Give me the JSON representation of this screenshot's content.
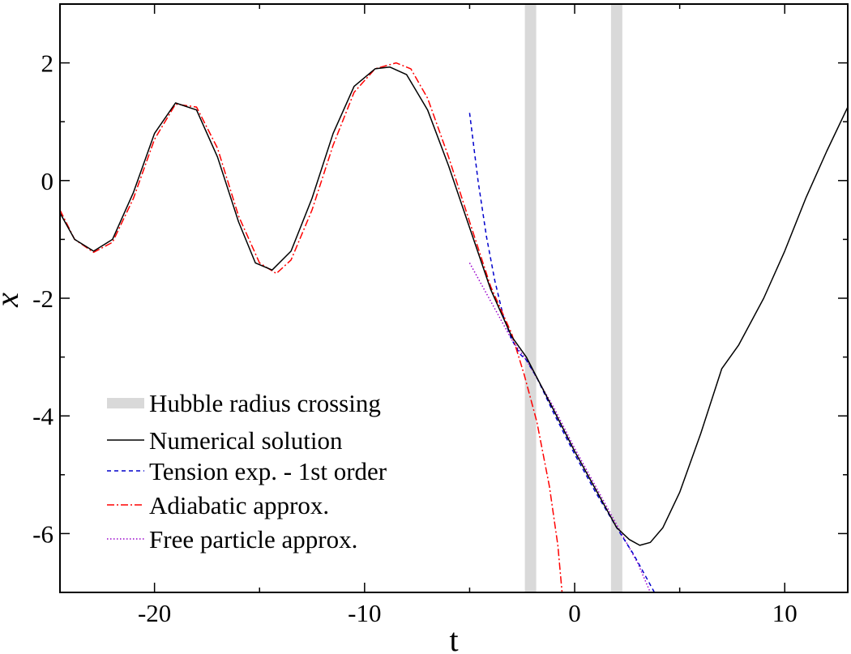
{
  "chart_data": {
    "type": "line",
    "xlabel": "t",
    "ylabel": "x",
    "xlim": [
      -24.5,
      13
    ],
    "ylim": [
      -7,
      3
    ],
    "xticks": [
      -20,
      -10,
      0,
      10
    ],
    "xtick_labels": [
      "-20",
      "-10",
      "0",
      "10"
    ],
    "yticks": [
      -6,
      -4,
      -2,
      0,
      2
    ],
    "ytick_labels": [
      "-6",
      "-4",
      "-2",
      "0",
      "2"
    ],
    "grid": false,
    "legend_position": "bottom-left",
    "hubble_crossings": [
      -2.1,
      2.0
    ],
    "legend": [
      "Hubble radius crossing",
      "Numerical solution",
      "Tension exp. - 1st order",
      "Adiabatic approx.",
      "Free particle approx."
    ],
    "series": [
      {
        "name": "Numerical solution",
        "color": "#000000",
        "style": "solid",
        "x": [
          -24.5,
          -23.8,
          -22.9,
          -22.0,
          -21.0,
          -20.0,
          -19.0,
          -18.0,
          -17.0,
          -16.0,
          -15.2,
          -14.4,
          -13.5,
          -12.5,
          -11.5,
          -10.5,
          -9.5,
          -8.8,
          -8.0,
          -7.0,
          -6.0,
          -5.0,
          -4.0,
          -3.0,
          -2.3,
          -1.0,
          0.0,
          1.0,
          2.0,
          2.6,
          3.1,
          3.6,
          4.2,
          5.0,
          6.0,
          7.0,
          7.8,
          9.0,
          10.0,
          11.0,
          12.0,
          13.0
        ],
        "y": [
          -0.55,
          -1.0,
          -1.2,
          -1.0,
          -0.2,
          0.8,
          1.32,
          1.2,
          0.4,
          -0.7,
          -1.4,
          -1.52,
          -1.2,
          -0.3,
          0.8,
          1.6,
          1.9,
          1.93,
          1.8,
          1.2,
          0.25,
          -0.8,
          -1.85,
          -2.65,
          -3.0,
          -3.9,
          -4.6,
          -5.25,
          -5.9,
          -6.1,
          -6.2,
          -6.15,
          -5.9,
          -5.3,
          -4.3,
          -3.2,
          -2.8,
          -2.0,
          -1.2,
          -0.3,
          0.5,
          1.25
        ]
      },
      {
        "name": "Tension exp. - 1st order",
        "color": "#0000cc",
        "style": "dashed",
        "x": [
          -5.0,
          -4.6,
          -4.2,
          -3.8,
          -3.4,
          -3.0,
          -2.6,
          -2.3,
          -1.8,
          -1.0,
          0.0,
          1.0,
          2.0,
          2.8,
          3.8
        ],
        "y": [
          1.15,
          0.0,
          -0.95,
          -1.7,
          -2.3,
          -2.7,
          -2.95,
          -3.05,
          -3.35,
          -3.95,
          -4.65,
          -5.3,
          -5.9,
          -6.35,
          -7.0
        ]
      },
      {
        "name": "Adiabatic approx.",
        "color": "#ff0000",
        "style": "dashdot",
        "x": [
          -24.5,
          -23.8,
          -22.9,
          -22.0,
          -21.0,
          -20.0,
          -19.0,
          -18.0,
          -17.0,
          -16.0,
          -15.0,
          -14.2,
          -13.5,
          -12.5,
          -11.5,
          -10.5,
          -9.5,
          -8.5,
          -7.8,
          -7.0,
          -6.0,
          -5.0,
          -4.0,
          -3.0,
          -2.4,
          -1.8,
          -1.2,
          -0.8,
          -0.6
        ],
        "y": [
          -0.5,
          -1.0,
          -1.22,
          -1.05,
          -0.3,
          0.7,
          1.3,
          1.25,
          0.55,
          -0.6,
          -1.4,
          -1.58,
          -1.35,
          -0.5,
          0.6,
          1.5,
          1.9,
          2.0,
          1.9,
          1.4,
          0.4,
          -0.7,
          -1.8,
          -2.6,
          -3.3,
          -4.1,
          -5.2,
          -6.2,
          -7.0
        ]
      },
      {
        "name": "Free particle approx.",
        "color": "#9900cc",
        "style": "dotted",
        "x": [
          -5.0,
          -4.0,
          -3.0,
          -2.3,
          -1.0,
          0.0,
          1.0,
          2.0,
          3.0,
          3.6
        ],
        "y": [
          -1.4,
          -2.05,
          -2.7,
          -3.05,
          -3.85,
          -4.55,
          -5.2,
          -5.85,
          -6.5,
          -7.0
        ]
      }
    ]
  }
}
